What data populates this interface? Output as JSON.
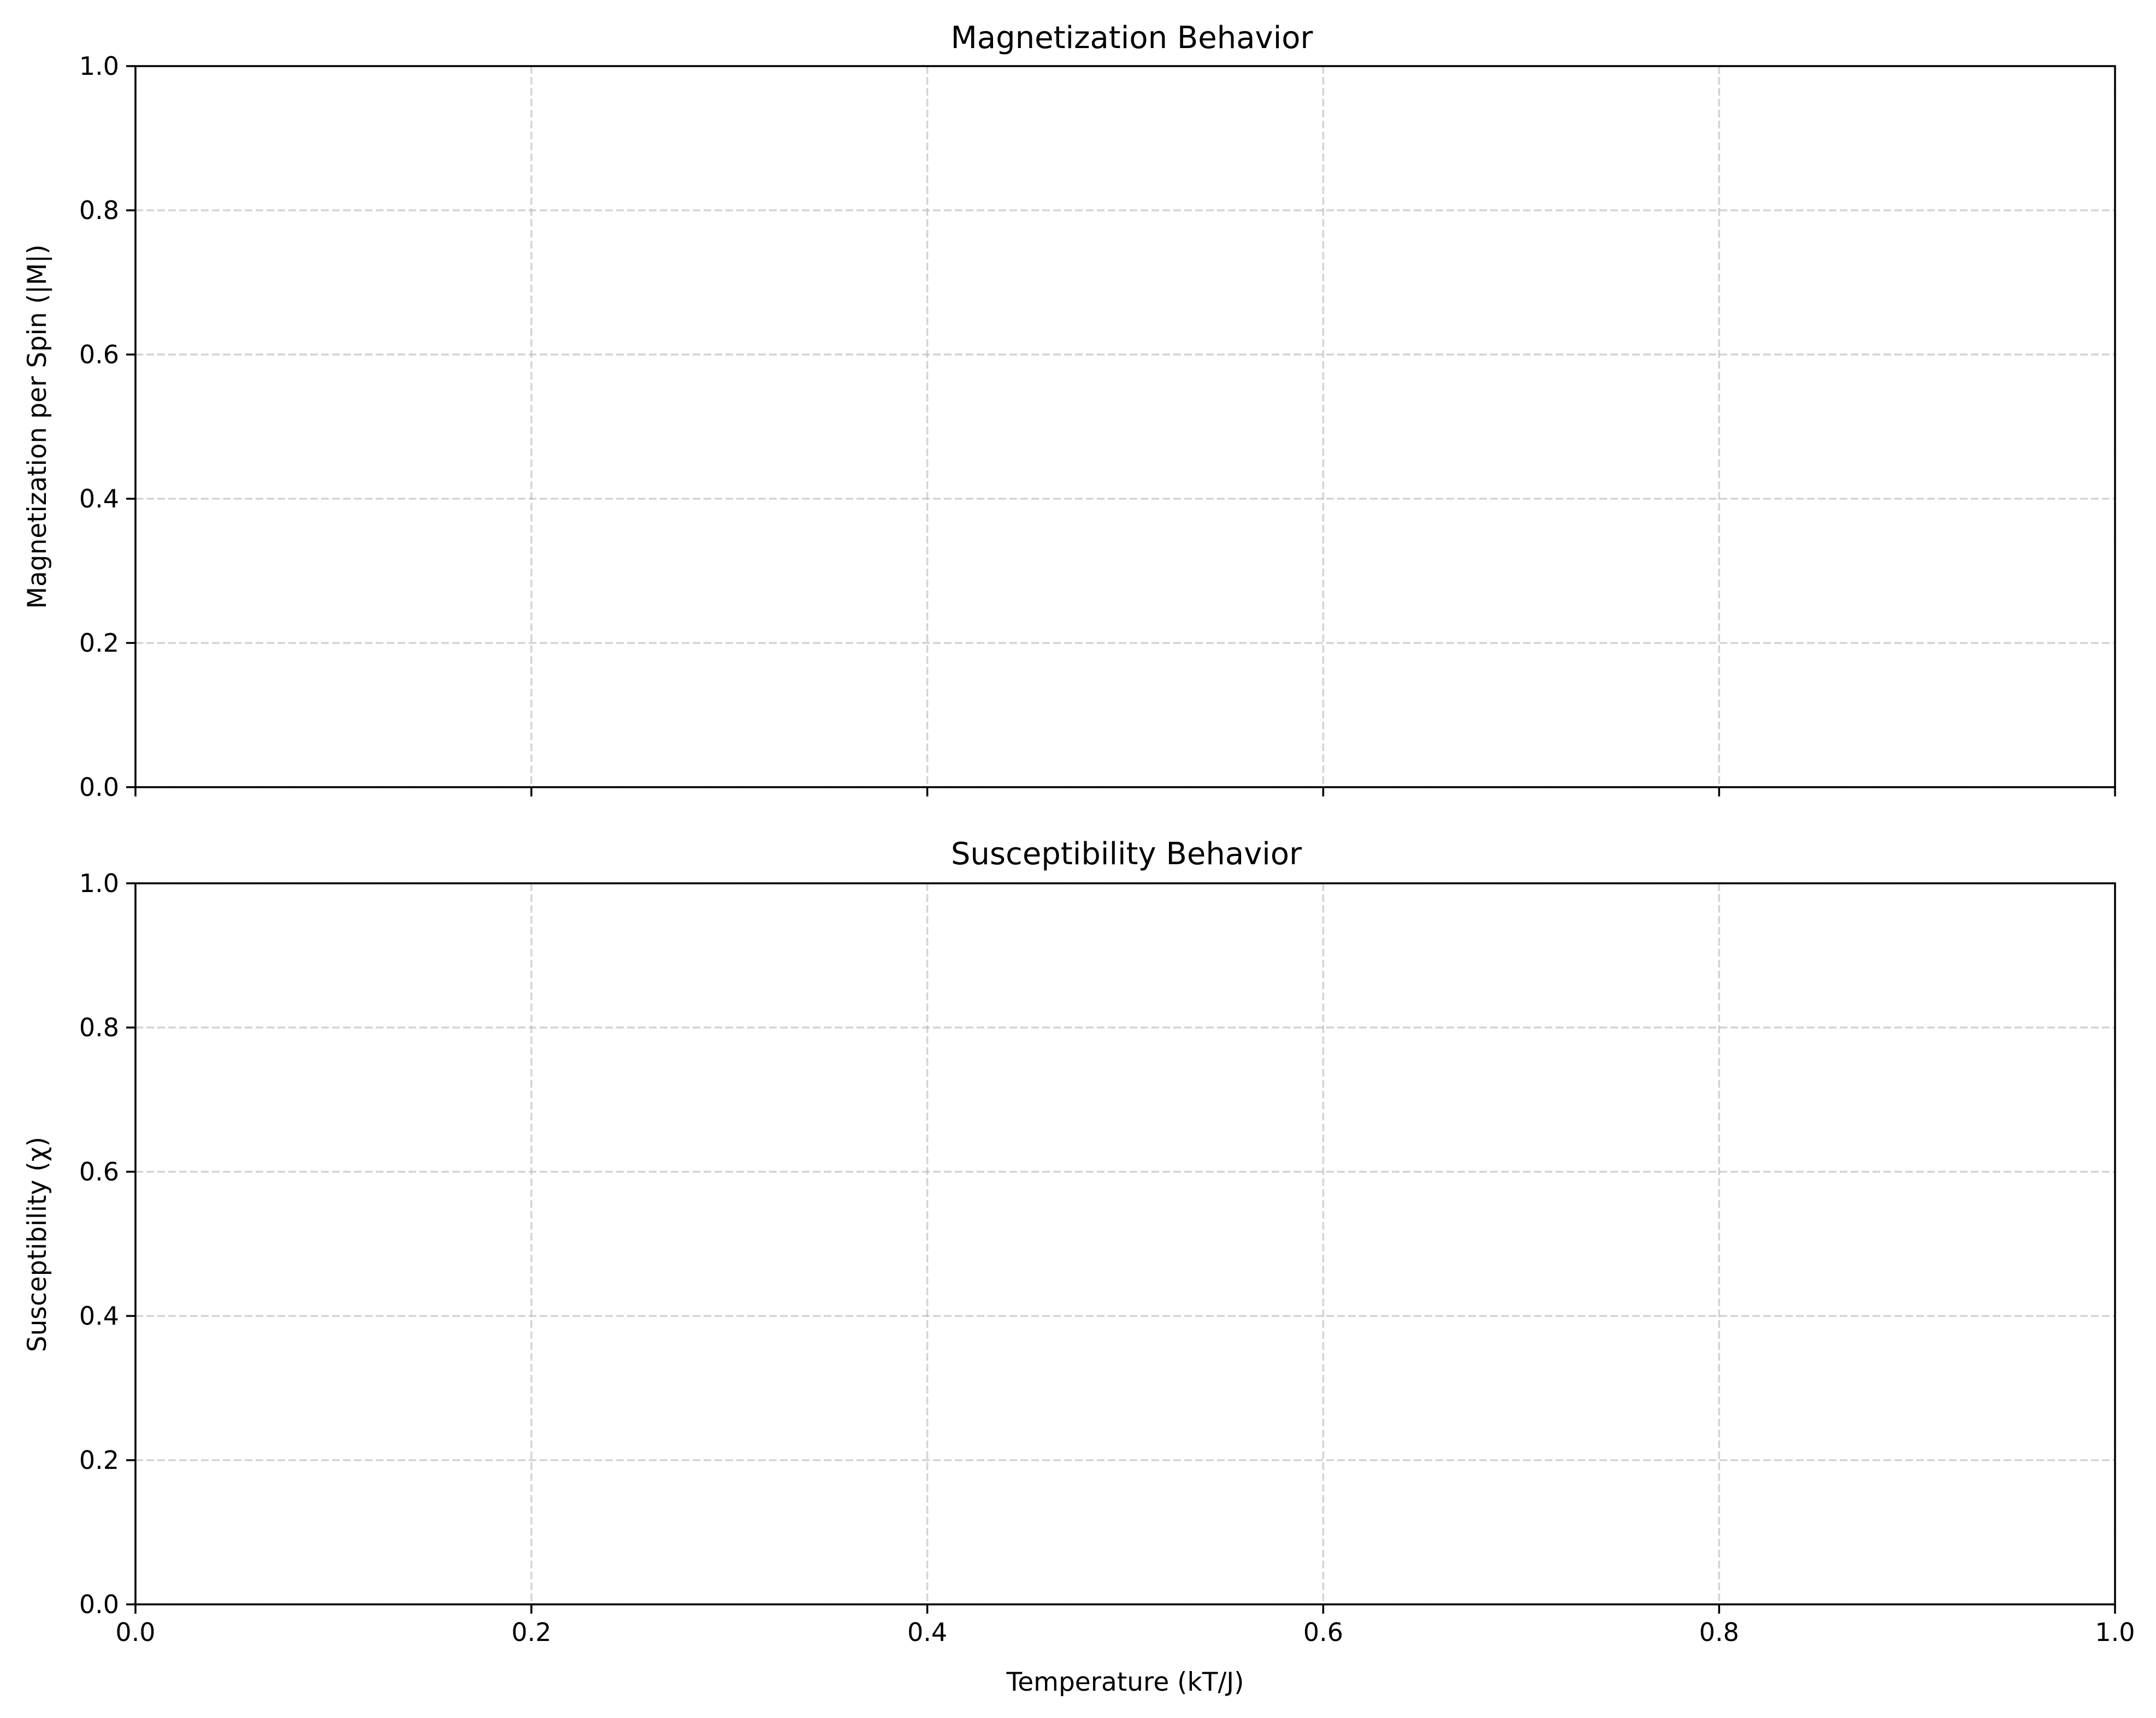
{
  "chart_data": [
    {
      "type": "line",
      "title": "Magnetization Behavior",
      "ylabel": "Magnetization per Spin (|M|)",
      "xlabel": "",
      "xlim": [
        0.0,
        1.0
      ],
      "ylim": [
        0.0,
        1.0
      ],
      "x_ticks": [
        "0.0",
        "0.2",
        "0.4",
        "0.6",
        "0.8",
        "1.0"
      ],
      "y_ticks": [
        "0.0",
        "0.2",
        "0.4",
        "0.6",
        "0.8",
        "1.0"
      ],
      "x_tick_labels_visible": false,
      "grid": true,
      "series": []
    },
    {
      "type": "line",
      "title": "Susceptibility Behavior",
      "ylabel": "Susceptibility (χ)",
      "xlabel": "Temperature (kT/J)",
      "xlim": [
        0.0,
        1.0
      ],
      "ylim": [
        0.0,
        1.0
      ],
      "x_ticks": [
        "0.0",
        "0.2",
        "0.4",
        "0.6",
        "0.8",
        "1.0"
      ],
      "y_ticks": [
        "0.0",
        "0.2",
        "0.4",
        "0.6",
        "0.8",
        "1.0"
      ],
      "x_tick_labels_visible": true,
      "grid": true,
      "series": []
    }
  ]
}
